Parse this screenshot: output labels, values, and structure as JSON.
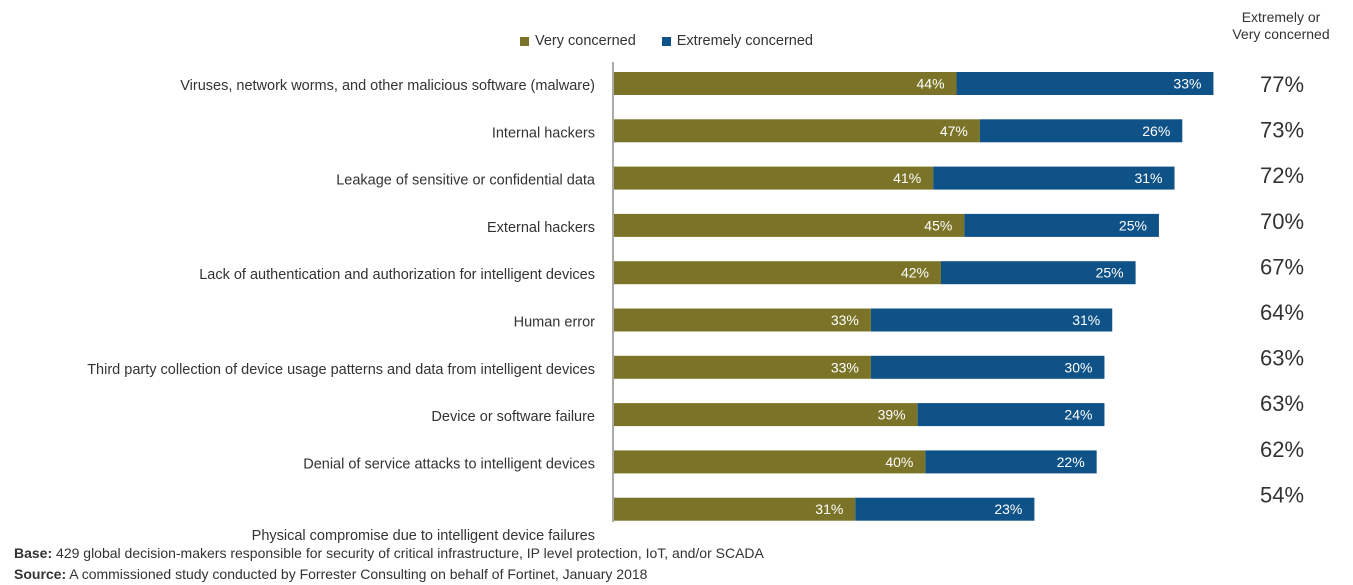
{
  "legend": {
    "very_label": "Very concerned",
    "extremely_label": "Extremely concerned"
  },
  "total_header": {
    "line1": "Extremely or",
    "line2": "Very concerned"
  },
  "colors": {
    "very": "#7b7428",
    "extremely": "#0f5288",
    "text": "#333333"
  },
  "footer": {
    "base_label": "Base:",
    "base_text": " 429 global decision-makers responsible for security of critical infrastructure, IP level protection, IoT, and/or SCADA",
    "source_label": "Source:",
    "source_text": " A commissioned study conducted by Forrester Consulting on behalf of Fortinet, January 2018"
  },
  "chart_data": {
    "type": "bar",
    "orientation": "horizontal",
    "stacked": true,
    "categories": [
      "Viruses, network worms, and other malicious software (malware)",
      "Internal hackers",
      "Leakage of sensitive or confidential data",
      "External hackers",
      "Lack of authentication and authorization for intelligent devices",
      "Human error",
      "Third party collection of device usage patterns and data from intelligent devices",
      "Device or software failure",
      "Denial of service attacks to intelligent devices",
      "Physical compromise due to intelligent device failures"
    ],
    "series": [
      {
        "name": "Very concerned",
        "values": [
          44,
          47,
          41,
          45,
          42,
          33,
          33,
          39,
          40,
          31
        ]
      },
      {
        "name": "Extremely concerned",
        "values": [
          33,
          26,
          31,
          25,
          25,
          31,
          30,
          24,
          22,
          23
        ]
      }
    ],
    "value_labels": {
      "very": [
        "44%",
        "47%",
        "41%",
        "45%",
        "42%",
        "33%",
        "33%",
        "39%",
        "40%",
        "31%"
      ],
      "extremely": [
        "33%",
        "26%",
        "31%",
        "25%",
        "25%",
        "31%",
        "30%",
        "24%",
        "22%",
        "23%"
      ]
    },
    "totals": [
      "77%",
      "73%",
      "72%",
      "70%",
      "67%",
      "64%",
      "63%",
      "63%",
      "62%",
      "54%"
    ],
    "xlim": [
      0,
      77
    ],
    "legend_position": "top",
    "grid": false
  }
}
